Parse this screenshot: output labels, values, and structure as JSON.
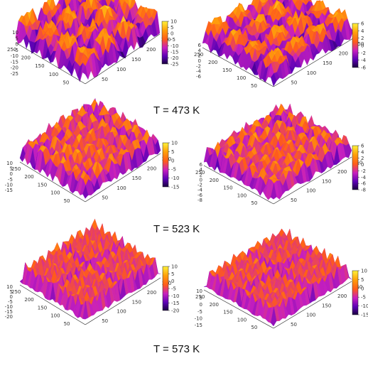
{
  "figure": {
    "rows": [
      {
        "title": "T = 473 K"
      },
      {
        "title": "T = 523 K"
      },
      {
        "title": "T = 573 K"
      }
    ]
  },
  "colormap": [
    "#1a0040",
    "#5b00b5",
    "#c81fbf",
    "#ff5b1a",
    "#ffa20a",
    "#fff23a"
  ],
  "chart_data": [
    {
      "type": "heatmap",
      "name": "",
      "row": 0,
      "col": 0,
      "title": "",
      "xlim": [
        0,
        250
      ],
      "ylim": [
        0,
        250
      ],
      "x_ticks": [
        "50",
        "100",
        "150",
        "200",
        "250"
      ],
      "y_ticks": [
        "50",
        "100",
        "150",
        "200",
        "250"
      ],
      "z_ticks": [
        "10",
        "5",
        "0",
        "-5",
        "-10",
        "-15",
        "-20",
        "-25"
      ],
      "zlim": [
        -25,
        10
      ],
      "cb_ticks": [
        "10",
        "5",
        "0",
        "-5",
        "-10",
        "-15",
        "-20",
        "-25"
      ],
      "cb_range": [
        -25,
        10
      ],
      "roughness": 0.95
    },
    {
      "type": "heatmap",
      "name": "",
      "row": 0,
      "col": 1,
      "title": "",
      "xlim": [
        0,
        250
      ],
      "ylim": [
        0,
        250
      ],
      "x_ticks": [
        "50",
        "100",
        "150",
        "200",
        "250"
      ],
      "y_ticks": [
        "50",
        "100",
        "150",
        "200",
        "250"
      ],
      "z_ticks": [
        "6",
        "4",
        "2",
        "0",
        "-2",
        "-4",
        "-6"
      ],
      "zlim": [
        -6,
        6
      ],
      "cb_ticks": [
        "6",
        "4",
        "2",
        "0",
        "-2",
        "-4",
        "-6"
      ],
      "cb_range": [
        -6,
        6
      ],
      "roughness": 0.8
    },
    {
      "type": "heatmap",
      "name": "",
      "row": 1,
      "col": 0,
      "title": "",
      "xlim": [
        0,
        250
      ],
      "ylim": [
        0,
        250
      ],
      "x_ticks": [
        "50",
        "100",
        "150",
        "200",
        "250"
      ],
      "y_ticks": [
        "50",
        "100",
        "150",
        "200",
        "250"
      ],
      "z_ticks": [
        "10",
        "5",
        "0",
        "-5",
        "-10",
        "-15"
      ],
      "zlim": [
        -15,
        10
      ],
      "cb_ticks": [
        "10",
        "5",
        "0",
        "-5",
        "-10",
        "-15"
      ],
      "cb_range": [
        -15,
        10
      ],
      "roughness": 0.6
    },
    {
      "type": "heatmap",
      "name": "",
      "row": 1,
      "col": 1,
      "title": "",
      "xlim": [
        0,
        250
      ],
      "ylim": [
        0,
        250
      ],
      "x_ticks": [
        "50",
        "100",
        "150",
        "200",
        "250"
      ],
      "y_ticks": [
        "50",
        "100",
        "150",
        "200",
        "250"
      ],
      "z_ticks": [
        "6",
        "4",
        "2",
        "0",
        "-2",
        "-4",
        "-6",
        "-8"
      ],
      "zlim": [
        -8,
        6
      ],
      "cb_ticks": [
        "6",
        "4",
        "2",
        "0",
        "-2",
        "-4",
        "-6",
        "-8"
      ],
      "cb_range": [
        -8,
        6
      ],
      "roughness": 0.55
    },
    {
      "type": "heatmap",
      "name": "",
      "row": 2,
      "col": 0,
      "title": "",
      "xlim": [
        0,
        250
      ],
      "ylim": [
        0,
        250
      ],
      "x_ticks": [
        "50",
        "100",
        "150",
        "200",
        "250"
      ],
      "y_ticks": [
        "50",
        "100",
        "150",
        "200",
        "250"
      ],
      "z_ticks": [
        "10",
        "5",
        "0",
        "-5",
        "-10",
        "-15",
        "-20"
      ],
      "zlim": [
        -20,
        10
      ],
      "cb_ticks": [
        "10",
        "5",
        "0",
        "-5",
        "-10",
        "-15",
        "-20"
      ],
      "cb_range": [
        -20,
        10
      ],
      "roughness": 0.35
    },
    {
      "type": "heatmap",
      "name": "",
      "row": 2,
      "col": 1,
      "title": "",
      "xlim": [
        0,
        250
      ],
      "ylim": [
        0,
        250
      ],
      "x_ticks": [
        "50",
        "100",
        "150",
        "200",
        "250"
      ],
      "y_ticks": [
        "50",
        "100",
        "150",
        "200",
        "250"
      ],
      "z_ticks": [
        "10",
        "5",
        "0",
        "-5",
        "-10",
        "-15"
      ],
      "zlim": [
        -15,
        10
      ],
      "cb_ticks": [
        "10",
        "5",
        "0",
        "-5",
        "-10",
        "-15"
      ],
      "cb_range": [
        -15,
        10
      ],
      "roughness": 0.35
    }
  ]
}
